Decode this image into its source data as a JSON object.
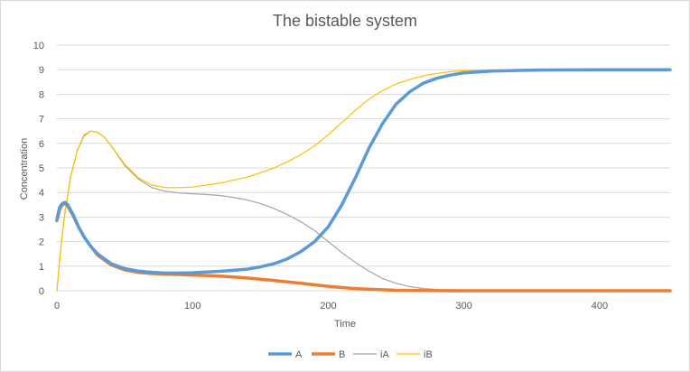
{
  "chart_data": {
    "type": "line",
    "title": "The bistable system",
    "xlabel": "Time",
    "ylabel": "Concentration",
    "xlim": [
      0,
      452
    ],
    "ylim": [
      0,
      10
    ],
    "xticks": [
      0,
      100,
      200,
      300,
      400
    ],
    "yticks": [
      0,
      1,
      2,
      3,
      4,
      5,
      6,
      7,
      8,
      9,
      10
    ],
    "grid": true,
    "legend_position": "bottom",
    "series": [
      {
        "name": "A",
        "color": "#5b9bd5",
        "width": "thick",
        "points": [
          [
            0,
            2.9
          ],
          [
            2,
            3.4
          ],
          [
            4,
            3.55
          ],
          [
            6,
            3.6
          ],
          [
            8,
            3.5
          ],
          [
            12,
            3.1
          ],
          [
            16,
            2.6
          ],
          [
            20,
            2.2
          ],
          [
            25,
            1.8
          ],
          [
            30,
            1.5
          ],
          [
            40,
            1.1
          ],
          [
            50,
            0.9
          ],
          [
            60,
            0.8
          ],
          [
            70,
            0.75
          ],
          [
            80,
            0.72
          ],
          [
            90,
            0.72
          ],
          [
            100,
            0.73
          ],
          [
            110,
            0.76
          ],
          [
            120,
            0.79
          ],
          [
            130,
            0.83
          ],
          [
            140,
            0.88
          ],
          [
            150,
            0.97
          ],
          [
            160,
            1.1
          ],
          [
            170,
            1.3
          ],
          [
            180,
            1.6
          ],
          [
            190,
            2.0
          ],
          [
            200,
            2.6
          ],
          [
            210,
            3.5
          ],
          [
            220,
            4.6
          ],
          [
            230,
            5.8
          ],
          [
            240,
            6.8
          ],
          [
            250,
            7.6
          ],
          [
            260,
            8.1
          ],
          [
            270,
            8.45
          ],
          [
            280,
            8.65
          ],
          [
            290,
            8.78
          ],
          [
            300,
            8.87
          ],
          [
            320,
            8.94
          ],
          [
            340,
            8.97
          ],
          [
            360,
            8.99
          ],
          [
            400,
            9.0
          ],
          [
            452,
            9.0
          ]
        ]
      },
      {
        "name": "B",
        "color": "#ed7d31",
        "width": "thick",
        "points": [
          [
            0,
            2.85
          ],
          [
            2,
            3.3
          ],
          [
            4,
            3.5
          ],
          [
            6,
            3.55
          ],
          [
            8,
            3.45
          ],
          [
            12,
            3.05
          ],
          [
            16,
            2.6
          ],
          [
            20,
            2.2
          ],
          [
            25,
            1.8
          ],
          [
            30,
            1.45
          ],
          [
            40,
            1.05
          ],
          [
            50,
            0.85
          ],
          [
            60,
            0.75
          ],
          [
            70,
            0.7
          ],
          [
            80,
            0.67
          ],
          [
            90,
            0.66
          ],
          [
            100,
            0.64
          ],
          [
            110,
            0.62
          ],
          [
            120,
            0.6
          ],
          [
            130,
            0.56
          ],
          [
            140,
            0.52
          ],
          [
            150,
            0.47
          ],
          [
            160,
            0.42
          ],
          [
            170,
            0.36
          ],
          [
            180,
            0.3
          ],
          [
            190,
            0.24
          ],
          [
            200,
            0.18
          ],
          [
            210,
            0.13
          ],
          [
            220,
            0.09
          ],
          [
            230,
            0.06
          ],
          [
            240,
            0.04
          ],
          [
            250,
            0.02
          ],
          [
            260,
            0.01
          ],
          [
            280,
            0.005
          ],
          [
            300,
            0.0
          ],
          [
            452,
            0.0
          ]
        ]
      },
      {
        "name": "iA",
        "color": "#a5a5a5",
        "width": "thin",
        "points": [
          [
            0,
            0
          ],
          [
            2,
            1.2
          ],
          [
            4,
            2.3
          ],
          [
            6,
            3.2
          ],
          [
            10,
            4.6
          ],
          [
            15,
            5.7
          ],
          [
            20,
            6.3
          ],
          [
            25,
            6.5
          ],
          [
            30,
            6.45
          ],
          [
            35,
            6.25
          ],
          [
            40,
            5.9
          ],
          [
            50,
            5.1
          ],
          [
            60,
            4.55
          ],
          [
            70,
            4.2
          ],
          [
            80,
            4.05
          ],
          [
            90,
            3.98
          ],
          [
            100,
            3.95
          ],
          [
            110,
            3.92
          ],
          [
            120,
            3.88
          ],
          [
            130,
            3.8
          ],
          [
            140,
            3.7
          ],
          [
            150,
            3.55
          ],
          [
            160,
            3.35
          ],
          [
            170,
            3.1
          ],
          [
            180,
            2.8
          ],
          [
            190,
            2.45
          ],
          [
            200,
            2.0
          ],
          [
            210,
            1.55
          ],
          [
            220,
            1.15
          ],
          [
            230,
            0.8
          ],
          [
            240,
            0.5
          ],
          [
            250,
            0.3
          ],
          [
            260,
            0.17
          ],
          [
            270,
            0.09
          ],
          [
            280,
            0.05
          ],
          [
            290,
            0.03
          ],
          [
            300,
            0.01
          ],
          [
            320,
            0.0
          ],
          [
            452,
            0.0
          ]
        ]
      },
      {
        "name": "iB",
        "color": "#ffc000",
        "width": "thin",
        "points": [
          [
            0,
            0
          ],
          [
            2,
            1.2
          ],
          [
            4,
            2.3
          ],
          [
            6,
            3.2
          ],
          [
            10,
            4.6
          ],
          [
            15,
            5.7
          ],
          [
            20,
            6.35
          ],
          [
            25,
            6.5
          ],
          [
            30,
            6.45
          ],
          [
            35,
            6.25
          ],
          [
            40,
            5.9
          ],
          [
            50,
            5.15
          ],
          [
            60,
            4.6
          ],
          [
            70,
            4.3
          ],
          [
            80,
            4.2
          ],
          [
            90,
            4.2
          ],
          [
            100,
            4.22
          ],
          [
            110,
            4.3
          ],
          [
            120,
            4.38
          ],
          [
            130,
            4.5
          ],
          [
            140,
            4.62
          ],
          [
            150,
            4.8
          ],
          [
            160,
            5.0
          ],
          [
            170,
            5.25
          ],
          [
            180,
            5.55
          ],
          [
            190,
            5.9
          ],
          [
            200,
            6.35
          ],
          [
            210,
            6.85
          ],
          [
            220,
            7.35
          ],
          [
            230,
            7.8
          ],
          [
            240,
            8.15
          ],
          [
            250,
            8.42
          ],
          [
            260,
            8.6
          ],
          [
            270,
            8.75
          ],
          [
            280,
            8.85
          ],
          [
            290,
            8.92
          ],
          [
            300,
            8.96
          ],
          [
            320,
            8.99
          ],
          [
            350,
            9.0
          ],
          [
            452,
            9.0
          ]
        ]
      }
    ]
  }
}
